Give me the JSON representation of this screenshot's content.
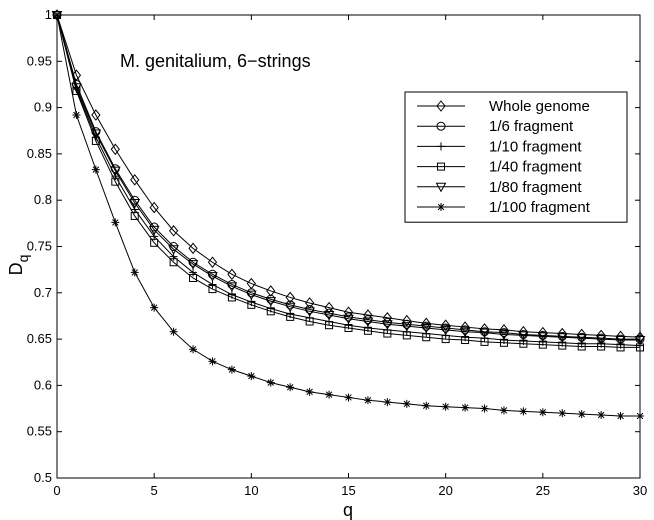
{
  "chart_data": {
    "type": "line",
    "title": "",
    "annotation": "M. genitalium, 6−strings",
    "xlabel": "q",
    "ylabel": "D",
    "ylabel_subscript": "q",
    "xlim": [
      0,
      30
    ],
    "ylim": [
      0.5,
      1
    ],
    "xticks": [
      0,
      5,
      10,
      15,
      20,
      25,
      30
    ],
    "yticks": [
      0.5,
      0.55,
      0.6,
      0.65,
      0.7,
      0.75,
      0.8,
      0.85,
      0.9,
      0.95,
      1
    ],
    "grid": false,
    "legend_position": "right",
    "x": [
      0,
      1,
      2,
      3,
      4,
      5,
      6,
      7,
      8,
      9,
      10,
      11,
      12,
      13,
      14,
      15,
      16,
      17,
      18,
      19,
      20,
      21,
      22,
      23,
      24,
      25,
      26,
      27,
      28,
      29,
      30
    ],
    "series": [
      {
        "name": "Whole genome",
        "marker": "diamond",
        "values": [
          1.0,
          0.935,
          0.892,
          0.855,
          0.822,
          0.792,
          0.767,
          0.748,
          0.733,
          0.72,
          0.71,
          0.702,
          0.695,
          0.689,
          0.684,
          0.679,
          0.676,
          0.673,
          0.67,
          0.667,
          0.665,
          0.663,
          0.661,
          0.66,
          0.658,
          0.657,
          0.656,
          0.655,
          0.654,
          0.653,
          0.652
        ]
      },
      {
        "name": "1/6 fragment",
        "marker": "circle",
        "values": [
          1.0,
          0.925,
          0.874,
          0.834,
          0.8,
          0.771,
          0.75,
          0.733,
          0.72,
          0.709,
          0.7,
          0.693,
          0.687,
          0.682,
          0.678,
          0.674,
          0.671,
          0.668,
          0.666,
          0.664,
          0.662,
          0.66,
          0.658,
          0.657,
          0.655,
          0.654,
          0.653,
          0.652,
          0.651,
          0.65,
          0.65
        ]
      },
      {
        "name": "1/10 fragment",
        "marker": "plus",
        "values": [
          1.0,
          0.92,
          0.868,
          0.826,
          0.79,
          0.761,
          0.739,
          0.722,
          0.709,
          0.698,
          0.69,
          0.683,
          0.677,
          0.673,
          0.669,
          0.665,
          0.662,
          0.66,
          0.658,
          0.656,
          0.654,
          0.652,
          0.651,
          0.649,
          0.648,
          0.647,
          0.646,
          0.645,
          0.645,
          0.644,
          0.643
        ]
      },
      {
        "name": "1/40 fragment",
        "marker": "square",
        "values": [
          1.0,
          0.918,
          0.864,
          0.82,
          0.783,
          0.754,
          0.733,
          0.716,
          0.704,
          0.695,
          0.687,
          0.68,
          0.674,
          0.669,
          0.665,
          0.662,
          0.659,
          0.656,
          0.654,
          0.652,
          0.65,
          0.649,
          0.647,
          0.646,
          0.645,
          0.644,
          0.643,
          0.642,
          0.642,
          0.641,
          0.641
        ]
      },
      {
        "name": "1/80 fragment",
        "marker": "triangle-down",
        "values": [
          1.0,
          0.922,
          0.872,
          0.832,
          0.797,
          0.768,
          0.747,
          0.731,
          0.718,
          0.707,
          0.698,
          0.691,
          0.685,
          0.68,
          0.676,
          0.672,
          0.669,
          0.666,
          0.664,
          0.662,
          0.66,
          0.658,
          0.657,
          0.655,
          0.654,
          0.653,
          0.652,
          0.651,
          0.65,
          0.649,
          0.649
        ]
      },
      {
        "name": "1/100 fragment",
        "marker": "star",
        "values": [
          1.0,
          0.892,
          0.833,
          0.776,
          0.722,
          0.684,
          0.658,
          0.639,
          0.626,
          0.617,
          0.61,
          0.603,
          0.598,
          0.593,
          0.59,
          0.587,
          0.584,
          0.582,
          0.58,
          0.578,
          0.577,
          0.576,
          0.575,
          0.573,
          0.572,
          0.571,
          0.57,
          0.569,
          0.568,
          0.567,
          0.567
        ]
      }
    ]
  }
}
